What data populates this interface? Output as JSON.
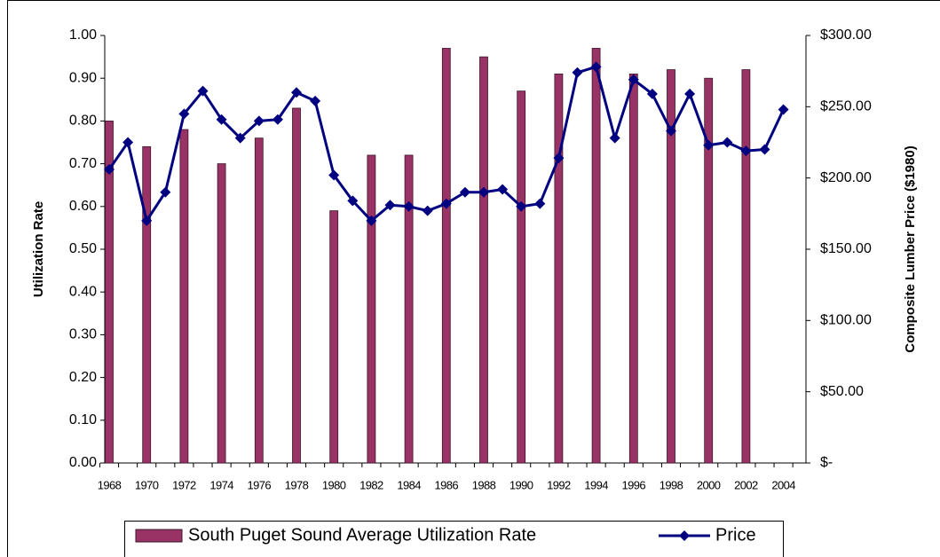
{
  "chart_data": {
    "type": "bar+line",
    "categories": [
      "1968",
      null,
      "1970",
      null,
      "1972",
      null,
      "1974",
      null,
      "1976",
      null,
      "1978",
      null,
      "1980",
      null,
      "1982",
      null,
      "1984",
      null,
      "1986",
      null,
      "1988",
      null,
      "1990",
      null,
      "1992",
      null,
      "1994",
      null,
      "1996",
      null,
      "1998",
      null,
      "2000",
      null,
      "2002",
      null,
      "2004"
    ],
    "series": [
      {
        "name": "South Puget Sound  Average Utilization Rate",
        "type": "bar",
        "color": "#993366",
        "axis": "y",
        "values": [
          0.8,
          null,
          0.74,
          null,
          0.78,
          null,
          0.7,
          null,
          0.76,
          null,
          0.83,
          null,
          0.59,
          null,
          0.72,
          null,
          0.72,
          null,
          0.97,
          null,
          0.95,
          null,
          0.87,
          null,
          0.91,
          null,
          0.97,
          null,
          0.91,
          null,
          0.92,
          null,
          0.9,
          null,
          0.92,
          null,
          null
        ]
      },
      {
        "name": "Price",
        "type": "line",
        "color": "#000080",
        "axis": "y2",
        "values": [
          206,
          225,
          170,
          190,
          245,
          261,
          241,
          228,
          240,
          241,
          260,
          254,
          202,
          184,
          170,
          181,
          180,
          177,
          182,
          190,
          190,
          192,
          180,
          182,
          214,
          274,
          278,
          228,
          269,
          259,
          233,
          259,
          223,
          225,
          219,
          220,
          248
        ]
      }
    ],
    "y_label": "Utilization Rate",
    "y2_label": "Composite Lumber Price ($1980)",
    "ylim": [
      0,
      1
    ],
    "yticks": [
      {
        "value": 0,
        "label": "0.00"
      },
      {
        "value": 0.1,
        "label": "0.10"
      },
      {
        "value": 0.2,
        "label": "0.20"
      },
      {
        "value": 0.3,
        "label": "0.30"
      },
      {
        "value": 0.4,
        "label": "0.40"
      },
      {
        "value": 0.5,
        "label": "0.50"
      },
      {
        "value": 0.6,
        "label": "0.60"
      },
      {
        "value": 0.7,
        "label": "0.70"
      },
      {
        "value": 0.8,
        "label": "0.80"
      },
      {
        "value": 0.9,
        "label": "0.90"
      },
      {
        "value": 1,
        "label": "1.00"
      }
    ],
    "y2lim": [
      0,
      300
    ],
    "y2ticks": [
      {
        "value": 0,
        "label": "$-"
      },
      {
        "value": 50,
        "label": "$50.00"
      },
      {
        "value": 100,
        "label": "$100.00"
      },
      {
        "value": 150,
        "label": "$150.00"
      },
      {
        "value": 200,
        "label": "$200.00"
      },
      {
        "value": 250,
        "label": "$250.00"
      },
      {
        "value": 300,
        "label": "$300.00"
      }
    ],
    "legend": "bottom"
  }
}
